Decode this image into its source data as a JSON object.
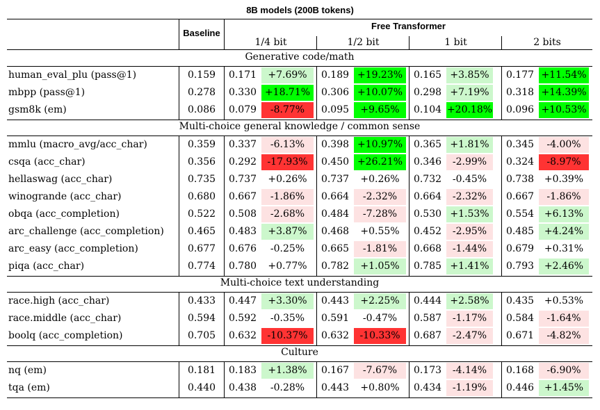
{
  "title": "8B models (200B tokens)",
  "header": {
    "baseline": "Baseline",
    "free_transformer": "Free Transformer",
    "groups": [
      "1/4 bit",
      "1/2 bit",
      "1 bit",
      "2 bits"
    ]
  },
  "sections": [
    {
      "title": "Generative code/math",
      "rows": [
        {
          "name": "human_eval_plu (pass@1)",
          "baseline": "0.159",
          "vals": [
            {
              "v": "0.171",
              "p": "+7.69%"
            },
            {
              "v": "0.189",
              "p": "+19.23%"
            },
            {
              "v": "0.165",
              "p": "+3.85%"
            },
            {
              "v": "0.177",
              "p": "+11.54%"
            }
          ]
        },
        {
          "name": "mbpp (pass@1)",
          "baseline": "0.278",
          "vals": [
            {
              "v": "0.330",
              "p": "+18.71%"
            },
            {
              "v": "0.306",
              "p": "+10.07%"
            },
            {
              "v": "0.298",
              "p": "+7.19%"
            },
            {
              "v": "0.318",
              "p": "+14.39%"
            }
          ]
        },
        {
          "name": "gsm8k (em)",
          "baseline": "0.086",
          "vals": [
            {
              "v": "0.079",
              "p": "-8.77%"
            },
            {
              "v": "0.095",
              "p": "+9.65%"
            },
            {
              "v": "0.104",
              "p": "+20.18%"
            },
            {
              "v": "0.096",
              "p": "+10.53%"
            }
          ]
        }
      ]
    },
    {
      "title": "Multi-choice general knowledge / common sense",
      "rows": [
        {
          "name": "mmlu (macro_avg/acc_char)",
          "baseline": "0.359",
          "vals": [
            {
              "v": "0.337",
              "p": "-6.13%"
            },
            {
              "v": "0.398",
              "p": "+10.97%"
            },
            {
              "v": "0.365",
              "p": "+1.81%"
            },
            {
              "v": "0.345",
              "p": "-4.00%"
            }
          ]
        },
        {
          "name": "csqa (acc_char)",
          "baseline": "0.356",
          "vals": [
            {
              "v": "0.292",
              "p": "-17.93%"
            },
            {
              "v": "0.450",
              "p": "+26.21%"
            },
            {
              "v": "0.346",
              "p": "-2.99%"
            },
            {
              "v": "0.324",
              "p": "-8.97%"
            }
          ]
        },
        {
          "name": "hellaswag (acc_char)",
          "baseline": "0.735",
          "vals": [
            {
              "v": "0.737",
              "p": "+0.26%"
            },
            {
              "v": "0.737",
              "p": "+0.26%"
            },
            {
              "v": "0.732",
              "p": "-0.45%"
            },
            {
              "v": "0.738",
              "p": "+0.39%"
            }
          ]
        },
        {
          "name": "winogrande (acc_char)",
          "baseline": "0.680",
          "vals": [
            {
              "v": "0.667",
              "p": "-1.86%"
            },
            {
              "v": "0.664",
              "p": "-2.32%"
            },
            {
              "v": "0.664",
              "p": "-2.32%"
            },
            {
              "v": "0.667",
              "p": "-1.86%"
            }
          ]
        },
        {
          "name": "obqa (acc_completion)",
          "baseline": "0.522",
          "vals": [
            {
              "v": "0.508",
              "p": "-2.68%"
            },
            {
              "v": "0.484",
              "p": "-7.28%"
            },
            {
              "v": "0.530",
              "p": "+1.53%"
            },
            {
              "v": "0.554",
              "p": "+6.13%"
            }
          ]
        },
        {
          "name": "arc_challenge (acc_completion)",
          "baseline": "0.465",
          "vals": [
            {
              "v": "0.483",
              "p": "+3.87%"
            },
            {
              "v": "0.468",
              "p": "+0.55%"
            },
            {
              "v": "0.452",
              "p": "-2.95%"
            },
            {
              "v": "0.485",
              "p": "+4.24%"
            }
          ]
        },
        {
          "name": "arc_easy (acc_completion)",
          "baseline": "0.677",
          "vals": [
            {
              "v": "0.676",
              "p": "-0.25%"
            },
            {
              "v": "0.665",
              "p": "-1.81%"
            },
            {
              "v": "0.668",
              "p": "-1.44%"
            },
            {
              "v": "0.679",
              "p": "+0.31%"
            }
          ]
        },
        {
          "name": "piqa (acc_char)",
          "baseline": "0.774",
          "vals": [
            {
              "v": "0.780",
              "p": "+0.77%"
            },
            {
              "v": "0.782",
              "p": "+1.05%"
            },
            {
              "v": "0.785",
              "p": "+1.41%"
            },
            {
              "v": "0.793",
              "p": "+2.46%"
            }
          ]
        }
      ]
    },
    {
      "title": "Multi-choice text understanding",
      "rows": [
        {
          "name": "race.high (acc_char)",
          "baseline": "0.433",
          "vals": [
            {
              "v": "0.447",
              "p": "+3.30%"
            },
            {
              "v": "0.443",
              "p": "+2.25%"
            },
            {
              "v": "0.444",
              "p": "+2.58%"
            },
            {
              "v": "0.435",
              "p": "+0.53%"
            }
          ]
        },
        {
          "name": "race.middle (acc_char)",
          "baseline": "0.594",
          "vals": [
            {
              "v": "0.592",
              "p": "-0.35%"
            },
            {
              "v": "0.591",
              "p": "-0.47%"
            },
            {
              "v": "0.587",
              "p": "-1.17%"
            },
            {
              "v": "0.584",
              "p": "-1.64%"
            }
          ]
        },
        {
          "name": "boolq (acc_completion)",
          "baseline": "0.705",
          "vals": [
            {
              "v": "0.632",
              "p": "-10.37%"
            },
            {
              "v": "0.632",
              "p": "-10.33%"
            },
            {
              "v": "0.687",
              "p": "-2.47%"
            },
            {
              "v": "0.671",
              "p": "-4.82%"
            }
          ]
        }
      ]
    },
    {
      "title": "Culture",
      "rows": [
        {
          "name": "nq (em)",
          "baseline": "0.181",
          "vals": [
            {
              "v": "0.183",
              "p": "+1.38%"
            },
            {
              "v": "0.167",
              "p": "-7.67%"
            },
            {
              "v": "0.173",
              "p": "-4.14%"
            },
            {
              "v": "0.168",
              "p": "-6.90%"
            }
          ]
        },
        {
          "name": "tqa (em)",
          "baseline": "0.440",
          "vals": [
            {
              "v": "0.438",
              "p": "-0.28%"
            },
            {
              "v": "0.443",
              "p": "+0.80%"
            },
            {
              "v": "0.434",
              "p": "-1.19%"
            },
            {
              "v": "0.446",
              "p": "+1.45%"
            }
          ]
        }
      ]
    }
  ]
}
